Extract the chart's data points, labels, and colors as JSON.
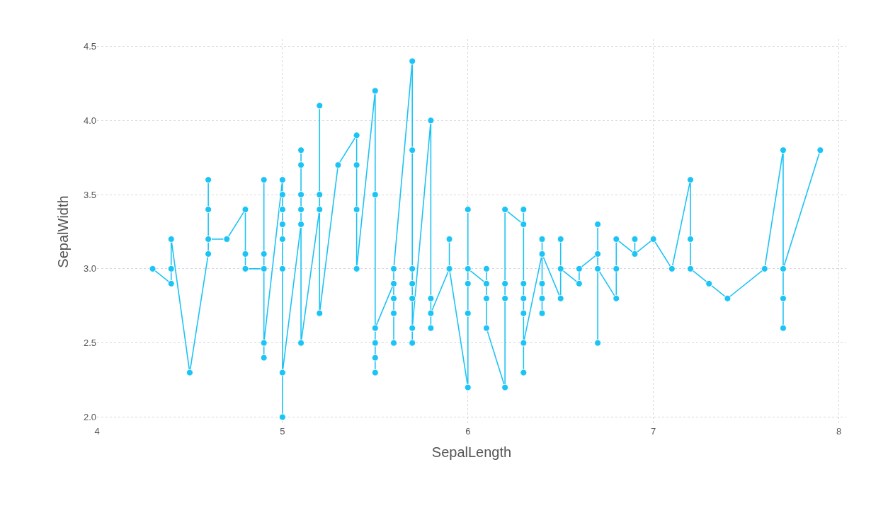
{
  "chart_data": {
    "type": "line",
    "xlabel": "SepalLength",
    "ylabel": "SepalWidth",
    "x": [
      4.3,
      4.4,
      4.4,
      4.4,
      4.5,
      4.6,
      4.6,
      4.6,
      4.6,
      4.7,
      4.8,
      4.8,
      4.8,
      4.9,
      4.9,
      4.9,
      4.9,
      4.9,
      5.0,
      5.0,
      5.0,
      5.0,
      5.0,
      5.0,
      5.0,
      5.0,
      5.1,
      5.1,
      5.1,
      5.1,
      5.1,
      5.1,
      5.2,
      5.2,
      5.2,
      5.2,
      5.3,
      5.4,
      5.4,
      5.4,
      5.4,
      5.5,
      5.5,
      5.5,
      5.5,
      5.5,
      5.5,
      5.6,
      5.6,
      5.6,
      5.6,
      5.6,
      5.7,
      5.7,
      5.7,
      5.7,
      5.7,
      5.7,
      5.7,
      5.8,
      5.8,
      5.8,
      5.8,
      5.9,
      5.9,
      5.9,
      6.0,
      6.0,
      6.0,
      6.0,
      6.0,
      6.1,
      6.1,
      6.1,
      6.1,
      6.2,
      6.2,
      6.2,
      6.2,
      6.3,
      6.3,
      6.3,
      6.3,
      6.3,
      6.3,
      6.3,
      6.4,
      6.4,
      6.4,
      6.4,
      6.4,
      6.4,
      6.5,
      6.5,
      6.5,
      6.6,
      6.6,
      6.7,
      6.7,
      6.7,
      6.7,
      6.8,
      6.8,
      6.8,
      6.9,
      6.9,
      6.9,
      7.0,
      7.1,
      7.2,
      7.2,
      7.2,
      7.3,
      7.4,
      7.6,
      7.7,
      7.7,
      7.7,
      7.7,
      7.9
    ],
    "series": [
      {
        "color": "#1cc3f5",
        "values": [
          3.0,
          2.9,
          3.0,
          3.2,
          2.3,
          3.1,
          3.4,
          3.6,
          3.2,
          3.2,
          3.4,
          3.1,
          3.0,
          3.0,
          3.6,
          3.1,
          2.4,
          2.5,
          3.6,
          3.5,
          3.4,
          3.3,
          3.2,
          3.0,
          2.0,
          2.3,
          3.3,
          3.4,
          3.5,
          3.7,
          3.8,
          2.5,
          3.4,
          3.5,
          4.1,
          2.7,
          3.7,
          3.9,
          3.7,
          3.4,
          3.0,
          4.2,
          3.5,
          2.5,
          2.4,
          2.3,
          2.6,
          2.9,
          2.8,
          2.7,
          2.5,
          3.0,
          4.4,
          3.8,
          3.0,
          2.9,
          2.8,
          2.5,
          2.6,
          4.0,
          2.8,
          2.6,
          2.7,
          3.0,
          3.2,
          3.0,
          2.2,
          2.7,
          2.9,
          3.4,
          3.0,
          2.9,
          3.0,
          2.8,
          2.6,
          2.2,
          2.8,
          2.9,
          3.4,
          3.3,
          3.4,
          2.9,
          2.8,
          2.7,
          2.3,
          2.5,
          3.1,
          3.2,
          2.9,
          2.8,
          2.7,
          3.1,
          2.8,
          3.2,
          3.0,
          2.9,
          3.0,
          3.1,
          3.3,
          2.5,
          3.0,
          2.8,
          3.0,
          3.2,
          3.1,
          3.2,
          3.1,
          3.2,
          3.0,
          3.6,
          3.2,
          3.0,
          2.9,
          2.8,
          3.0,
          3.8,
          2.8,
          2.6,
          3.0,
          3.8
        ]
      }
    ],
    "xlim": [
      4,
      8.04
    ],
    "xticks": [
      4,
      5,
      6,
      7,
      8
    ],
    "ylim": [
      1.95,
      4.55
    ],
    "yticks": [
      {
        "value": 2,
        "label": "2.0"
      },
      2.5,
      {
        "value": 3,
        "label": "3.0"
      },
      3.5,
      {
        "value": 4,
        "label": "4.0"
      },
      4.5
    ],
    "grid": true,
    "marker": "circle",
    "line_style": "solid"
  }
}
